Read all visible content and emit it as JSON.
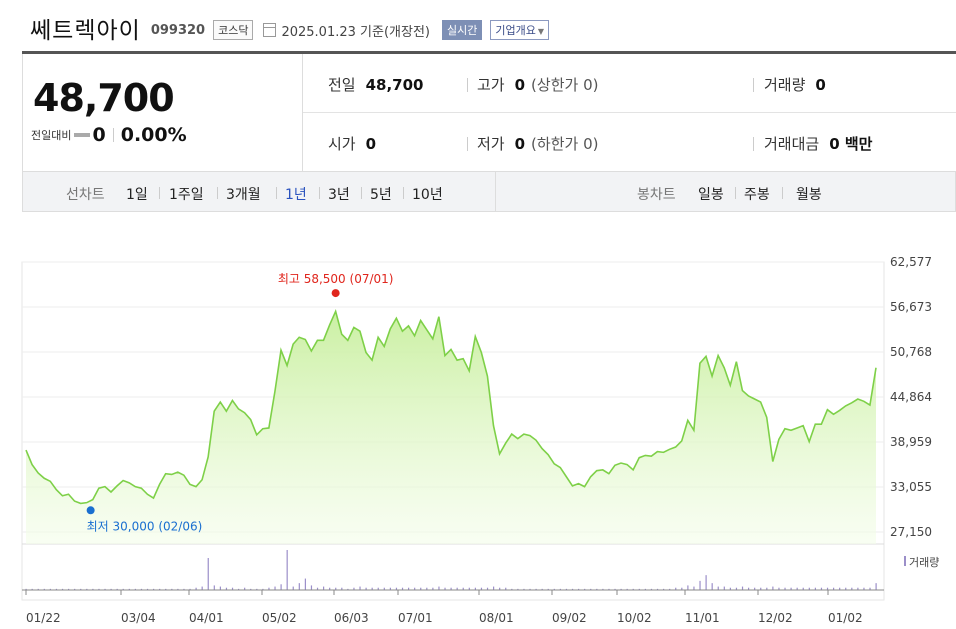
{
  "header": {
    "company_name": "쎄트렉아이",
    "stock_code": "099320",
    "market": "코스닥",
    "as_of": "2025.01.23 기준(개장전)",
    "realtime_label": "실시간",
    "company_info_label": "기업개요"
  },
  "quote": {
    "price": "48,700",
    "change_label": "전일대비",
    "change": "0",
    "change_pct": "0.00%"
  },
  "stats": {
    "prev_close": {
      "label": "전일",
      "value": "48,700"
    },
    "high": {
      "label": "고가",
      "value": "0",
      "sub": "(상한가 0)"
    },
    "volume": {
      "label": "거래량",
      "value": "0"
    },
    "open": {
      "label": "시가",
      "value": "0"
    },
    "low": {
      "label": "저가",
      "value": "0",
      "sub": "(하한가 0)"
    },
    "trade_value": {
      "label": "거래대금",
      "value": "0 백만"
    }
  },
  "period_bar": {
    "line_chart_label": "선차트",
    "periods": [
      "1일",
      "1주일",
      "3개월",
      "1년",
      "3년",
      "5년",
      "10년"
    ],
    "selected": "1년",
    "candle_label": "봉차트",
    "candle_periods": [
      "일봉",
      "주봉",
      "월봉"
    ]
  },
  "colors": {
    "accent_blue": "#2a52be",
    "line_green": "#7ed048",
    "high_red": "#e0261d",
    "low_blue": "#1a6fd0",
    "volume_bar": "#9b8fc9"
  },
  "chart_data": {
    "type": "area",
    "y_ticks": [
      "62,577",
      "56,673",
      "50,768",
      "44,864",
      "38,959",
      "33,055",
      "27,150"
    ],
    "ylim": [
      27150,
      62577
    ],
    "x_tick_labels": [
      "01/22",
      "03/04",
      "04/01",
      "05/02",
      "06/03",
      "07/01",
      "08/01",
      "09/02",
      "10/02",
      "11/01",
      "12/02",
      "01/02"
    ],
    "high_annotation": "최고 58,500 (07/01)",
    "low_annotation": "최저 30,000 (02/06)",
    "high_value": 58500,
    "low_value": 30000,
    "volume_legend": "거래량",
    "series": [
      {
        "values": [
          37900,
          36000,
          34900,
          34200,
          33800,
          32700,
          31900,
          32100,
          31200,
          30900,
          31000,
          31400,
          32900,
          33100,
          32400,
          33200,
          33900,
          33600,
          33100,
          32900,
          32100,
          31600,
          33400,
          34800,
          34700,
          35000,
          34600,
          33400,
          33100,
          34000,
          37000,
          43000,
          44200,
          43000,
          44400,
          43300,
          42800,
          41900,
          39900,
          40700,
          40800,
          45600,
          51000,
          49000,
          51800,
          52700,
          52400,
          50900,
          52300,
          52300,
          54300,
          56100,
          53100,
          52300,
          54000,
          53500,
          50700,
          49700,
          52700,
          51500,
          53800,
          55200,
          53500,
          54200,
          52900,
          54900,
          53700,
          52500,
          55400,
          50300,
          51100,
          49700,
          49900,
          48300,
          52800,
          50700,
          47600,
          41100,
          37400,
          38800,
          40000,
          39400,
          40000,
          39800,
          39200,
          38100,
          37300,
          36100,
          35600,
          34400,
          33200,
          33500,
          33100,
          34400,
          35200,
          35300,
          34800,
          35900,
          36200,
          36000,
          35300,
          36900,
          37200,
          37100,
          37700,
          37600,
          38000,
          38300,
          39100,
          41800,
          40500,
          49300,
          50200,
          47600,
          50300,
          48700,
          46400,
          49500,
          45700,
          45000,
          44600,
          44200,
          42200,
          36400,
          39300,
          40700,
          40500,
          40800,
          41100,
          39000,
          41300,
          41300,
          43200,
          42600,
          43100,
          43700,
          44100,
          44600,
          44300,
          43800,
          48700
        ]
      }
    ],
    "volume": [
      1,
      1,
      1,
      1,
      1,
      1,
      1,
      1,
      1,
      1,
      1,
      1,
      1,
      1,
      1,
      1,
      1,
      1,
      1,
      1,
      1,
      1,
      1,
      1,
      1,
      1,
      1,
      1,
      2,
      3,
      28,
      4,
      3,
      2,
      2,
      1,
      2,
      1,
      1,
      1,
      2,
      3,
      5,
      35,
      3,
      6,
      10,
      4,
      2,
      3,
      2,
      2,
      2,
      1,
      2,
      3,
      2,
      2,
      2,
      2,
      2,
      2,
      2,
      2,
      2,
      2,
      2,
      2,
      3,
      2,
      2,
      2,
      2,
      2,
      2,
      2,
      2,
      3,
      2,
      2,
      1,
      1,
      1,
      1,
      1,
      1,
      1,
      1,
      1,
      1,
      1,
      1,
      1,
      1,
      1,
      1,
      1,
      1,
      1,
      1,
      1,
      1,
      1,
      1,
      1,
      1,
      1,
      2,
      2,
      4,
      3,
      8,
      13,
      6,
      3,
      3,
      2,
      2,
      3,
      2,
      2,
      2,
      2,
      3,
      2,
      2,
      2,
      2,
      2,
      2,
      2,
      2,
      2,
      2,
      2,
      2,
      2,
      2,
      2,
      2,
      6
    ]
  }
}
